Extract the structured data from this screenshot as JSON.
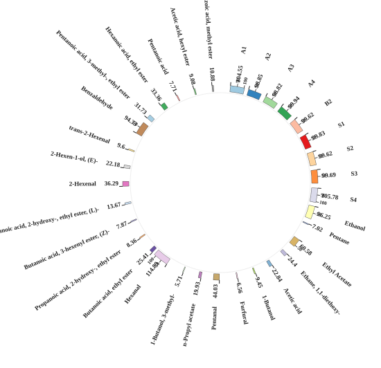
{
  "chart_data": {
    "type": "chord",
    "nodes": [
      {
        "name": "A1",
        "value": 104.55,
        "color": "#9ecae1"
      },
      {
        "name": "A2",
        "value": 98.85,
        "color": "#3182bd"
      },
      {
        "name": "A3",
        "value": 98.82,
        "color": "#a1d99b"
      },
      {
        "name": "A4",
        "value": 99.94,
        "color": "#31a354"
      },
      {
        "name": "B2",
        "value": 99.62,
        "color": "#fcbba1"
      },
      {
        "name": "S1",
        "value": 99.83,
        "color": "#e41a1c"
      },
      {
        "name": "S2",
        "value": 99.62,
        "color": "#fdd49e"
      },
      {
        "name": "S3",
        "value": 99.69,
        "color": "#fd8d3c"
      },
      {
        "name": "S4",
        "value": 105.78,
        "color": "#dadaeb"
      },
      {
        "name": "Ethanol",
        "value": 96.25,
        "color": "#ffffb3"
      },
      {
        "name": "Pentane",
        "value": 7.02,
        "color": "#8da0cb"
      },
      {
        "name": "Ethyl Acetate",
        "value": 60.58,
        "color": "#d8b365"
      },
      {
        "name": "Ethane, 1,1-diethoxy-",
        "value": 24.4,
        "color": "#bebada"
      },
      {
        "name": "Acetic acid",
        "value": 22.84,
        "color": "#80b1d3"
      },
      {
        "name": "1-Butanol",
        "value": 9.45,
        "color": "#b3de69"
      },
      {
        "name": "Furfural",
        "value": 6.56,
        "color": "#fccde5"
      },
      {
        "name": "Pentanal",
        "value": 44.03,
        "color": "#c7a86b"
      },
      {
        "name": "n-Propyl acetate",
        "value": 19.93,
        "color": "#bc80bd"
      },
      {
        "name": "1-Butanol, 3-methyl-",
        "value": 5.71,
        "color": "#ccebc5"
      },
      {
        "name": "Hexanal",
        "value": 114.89,
        "color": "#e7cbe8"
      },
      {
        "name": "Butanoic acid, ethyl ester",
        "value": 25.41,
        "color": "#6a51a3"
      },
      {
        "name": "Propanoic acid, 2-hydroxy-, ethyl ester",
        "value": 8.36,
        "color": "#fdae6b"
      },
      {
        "name": "Butanoic acid, 3-hexenyl ester, (Z)-",
        "value": 7.87,
        "color": "#9e9ac8"
      },
      {
        "name": "Propanoic acid, 2-hydroxy-, ethyl ester, (L)-",
        "value": 13.67,
        "color": "#c6dbef"
      },
      {
        "name": "2-Hexenal",
        "value": 36.29,
        "color": "#e377c2"
      },
      {
        "name": "2-Hexen-1-ol, (E)-",
        "value": 22.18,
        "color": "#d9d9d9"
      },
      {
        "name": "trans-2-Hexenal",
        "value": 9.6,
        "color": "#fee391"
      },
      {
        "name": "Benzaldehyde",
        "value": 94.33,
        "color": "#c08a5b"
      },
      {
        "name": "Pentanoic acid, 3-methyl-, ethyl ester",
        "value": 31.73,
        "color": "#a6cee3"
      },
      {
        "name": "Hexanoic acid, ethyl ester",
        "value": 33.36,
        "color": "#41ab5d"
      },
      {
        "name": "Pentanoic acid",
        "value": 7.71,
        "color": "#fb9a99"
      },
      {
        "name": "Acetic acid, hexyl ester",
        "value": 9.08,
        "color": "#74c476"
      },
      {
        "name": "Benzoic acid, methyl ester",
        "value": 10.88,
        "color": "#969696"
      }
    ],
    "scale_ticks": [
      50,
      100
    ]
  }
}
